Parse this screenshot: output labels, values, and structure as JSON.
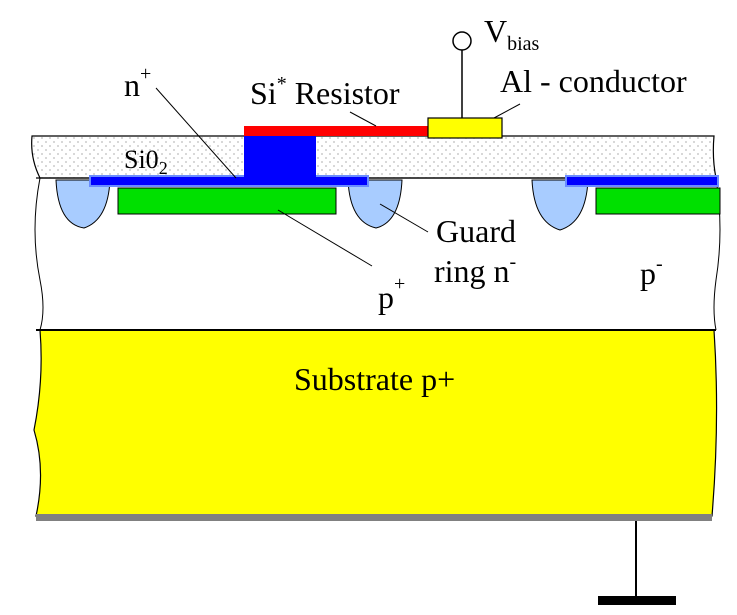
{
  "labels": {
    "vbias_main": "V",
    "vbias_sub": "bias",
    "n_plus_main": "n",
    "n_plus_sup": "+",
    "si_main": "Si",
    "si_sup": "*",
    "resistor": " Resistor",
    "al_conductor": "Al - conductor",
    "sio2_main": "Si0",
    "sio2_sub": "2",
    "guard": "Guard",
    "ring": "ring n",
    "ring_sup": "-",
    "p_plus_main": "p",
    "p_plus_sup": "+",
    "p_minus_main": "p",
    "p_minus_sup": "-",
    "substrate": "Substrate p+"
  },
  "colors": {
    "substrate": "#ffff00",
    "green_implant": "#00e000",
    "blue_plug": "#0000ff",
    "resistor_bar": "#ff0000",
    "al_pad": "#ffff00",
    "guard_ring": "#a8ccff",
    "oxide_dots": "#c8c8c8",
    "bottom_contact": "#808080"
  }
}
